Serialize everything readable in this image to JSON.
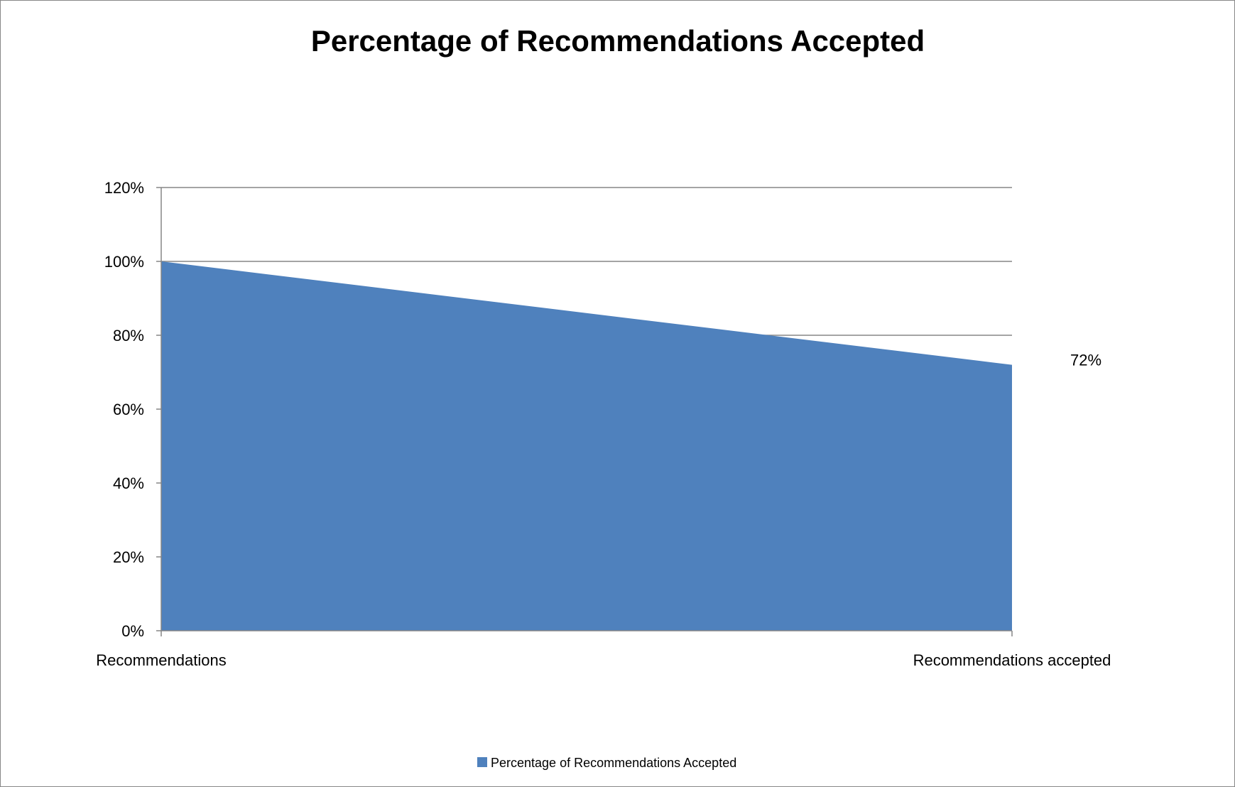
{
  "chart_data": {
    "type": "area",
    "title": "Percentage of Recommendations Accepted",
    "xlabel": "",
    "ylabel": "",
    "categories": [
      "Recommendations",
      "Recommendations accepted"
    ],
    "series": [
      {
        "name": "Percentage of Recommendations Accepted",
        "values": [
          1.0,
          0.72
        ],
        "color": "#4f81bd"
      }
    ],
    "ylim": [
      0,
      1.2
    ],
    "yticks": [
      0,
      0.2,
      0.4,
      0.6,
      0.8,
      1.0,
      1.2
    ],
    "ytick_labels": [
      "0%",
      "20%",
      "40%",
      "60%",
      "80%",
      "100%",
      "120%"
    ],
    "data_labels": [
      {
        "category": "Recommendations accepted",
        "text": "72%"
      }
    ],
    "grid": true,
    "legend": "bottom",
    "colors": {
      "area": "#4f81bd",
      "grid": "#868686",
      "axis": "#868686",
      "frame": "#888888"
    }
  }
}
